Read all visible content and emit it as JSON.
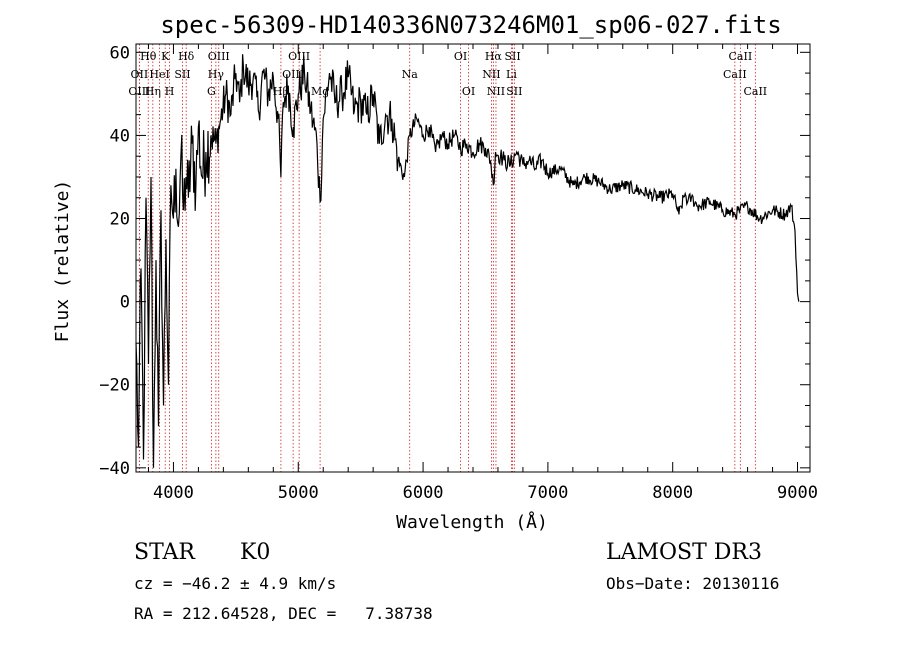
{
  "chart_data": {
    "type": "line",
    "title": "spec-56309-HD140336N073246M01_sp06-027.fits",
    "xlabel": "Wavelength (Å)",
    "ylabel": "Flux (relative)",
    "xlim": [
      3700,
      9100
    ],
    "ylim": [
      -41,
      62
    ],
    "xticks": [
      4000,
      5000,
      6000,
      7000,
      8000,
      9000
    ],
    "yticks": [
      -40,
      -20,
      0,
      20,
      40,
      60
    ],
    "series": [
      {
        "name": "spectrum",
        "x": [
          3700,
          3720,
          3740,
          3760,
          3780,
          3800,
          3820,
          3840,
          3860,
          3880,
          3900,
          3920,
          3940,
          3960,
          3980,
          4000,
          4020,
          4040,
          4060,
          4080,
          4100,
          4120,
          4150,
          4180,
          4200,
          4230,
          4260,
          4300,
          4340,
          4380,
          4420,
          4460,
          4500,
          4530,
          4560,
          4600,
          4640,
          4680,
          4720,
          4760,
          4800,
          4840,
          4861,
          4880,
          4920,
          4960,
          5000,
          5050,
          5100,
          5150,
          5175,
          5200,
          5250,
          5300,
          5350,
          5400,
          5450,
          5500,
          5550,
          5600,
          5650,
          5700,
          5750,
          5800,
          5850,
          5893,
          5950,
          6000,
          6050,
          6100,
          6150,
          6200,
          6250,
          6300,
          6350,
          6400,
          6450,
          6500,
          6540,
          6563,
          6580,
          6620,
          6650,
          6700,
          6750,
          6800,
          6850,
          6900,
          6950,
          7000,
          7100,
          7200,
          7300,
          7400,
          7500,
          7600,
          7700,
          7800,
          7900,
          8000,
          8050,
          8100,
          8120,
          8150,
          8200,
          8300,
          8400,
          8500,
          8540,
          8600,
          8700,
          8800,
          8900,
          8950,
          8980,
          9000,
          9010
        ],
        "y": [
          -10,
          -35,
          8,
          -38,
          25,
          -15,
          30,
          -40,
          10,
          -30,
          22,
          -25,
          15,
          -20,
          28,
          20,
          32,
          18,
          35,
          22,
          30,
          25,
          38,
          28,
          42,
          30,
          36,
          40,
          38,
          44,
          50,
          45,
          55,
          48,
          57,
          52,
          54,
          46,
          55,
          50,
          54,
          44,
          30,
          48,
          52,
          42,
          50,
          55,
          46,
          38,
          24,
          44,
          55,
          48,
          50,
          54,
          46,
          48,
          45,
          50,
          38,
          45,
          44,
          34,
          30,
          40,
          44,
          40,
          42,
          36,
          40,
          38,
          40,
          37,
          38,
          36,
          38,
          37,
          34,
          28,
          36,
          35,
          34,
          33,
          36,
          33,
          34,
          32,
          34,
          31,
          32,
          28,
          30,
          29,
          27,
          28,
          27,
          26,
          25,
          26,
          21,
          26,
          24,
          25,
          23,
          24,
          22,
          21,
          22,
          23,
          20,
          22,
          21,
          23,
          17,
          2,
          0
        ]
      }
    ],
    "spectral_lines": [
      {
        "label": "Hθ",
        "wave": 3798,
        "row": 0
      },
      {
        "label": "OII",
        "wave": 3727,
        "row": 1
      },
      {
        "label": "OIII",
        "wave": 3727,
        "row": 2
      },
      {
        "label": "K",
        "wave": 3934,
        "row": 0
      },
      {
        "label": "HeI",
        "wave": 3889,
        "row": 1
      },
      {
        "label": "Hη",
        "wave": 3835,
        "row": 2
      },
      {
        "label": "Hδ",
        "wave": 4102,
        "row": 0
      },
      {
        "label": "SII",
        "wave": 4072,
        "row": 1
      },
      {
        "label": "H",
        "wave": 3969,
        "row": 2
      },
      {
        "label": "OIII",
        "wave": 4363,
        "row": 0
      },
      {
        "label": "Hγ",
        "wave": 4340,
        "row": 1
      },
      {
        "label": "G",
        "wave": 4304,
        "row": 2
      },
      {
        "label": "OIII",
        "wave": 5007,
        "row": 0
      },
      {
        "label": "OIII",
        "wave": 4959,
        "row": 1
      },
      {
        "label": "Hβ",
        "wave": 4861,
        "row": 2
      },
      {
        "label": "Mg",
        "wave": 5175,
        "row": 2
      },
      {
        "label": "Na",
        "wave": 5893,
        "row": 1
      },
      {
        "label": "OI",
        "wave": 6300,
        "row": 0
      },
      {
        "label": "OI",
        "wave": 6364,
        "row": 2
      },
      {
        "label": "Hα",
        "wave": 6563,
        "row": 0
      },
      {
        "label": "SII",
        "wave": 6717,
        "row": 0
      },
      {
        "label": "NII",
        "wave": 6548,
        "row": 1
      },
      {
        "label": "Li",
        "wave": 6708,
        "row": 1
      },
      {
        "label": "NII",
        "wave": 6584,
        "row": 2
      },
      {
        "label": "SII",
        "wave": 6731,
        "row": 2
      },
      {
        "label": "CaII",
        "wave": 8542,
        "row": 0
      },
      {
        "label": "CaII",
        "wave": 8498,
        "row": 1
      },
      {
        "label": "CaII",
        "wave": 8662,
        "row": 2
      }
    ]
  },
  "info": {
    "object_class": "STAR",
    "subclass": "K0",
    "survey": "LAMOST DR3",
    "redshift_line": "cz = −46.2 ± 4.9 km/s",
    "obs_date_line": "Obs−Date: 20130116",
    "coords_line": "RA = 212.64528, DEC =   7.38738"
  },
  "colors": {
    "spectrum": "#000000",
    "line_markers": "#cc2222",
    "axes": "#000000"
  }
}
